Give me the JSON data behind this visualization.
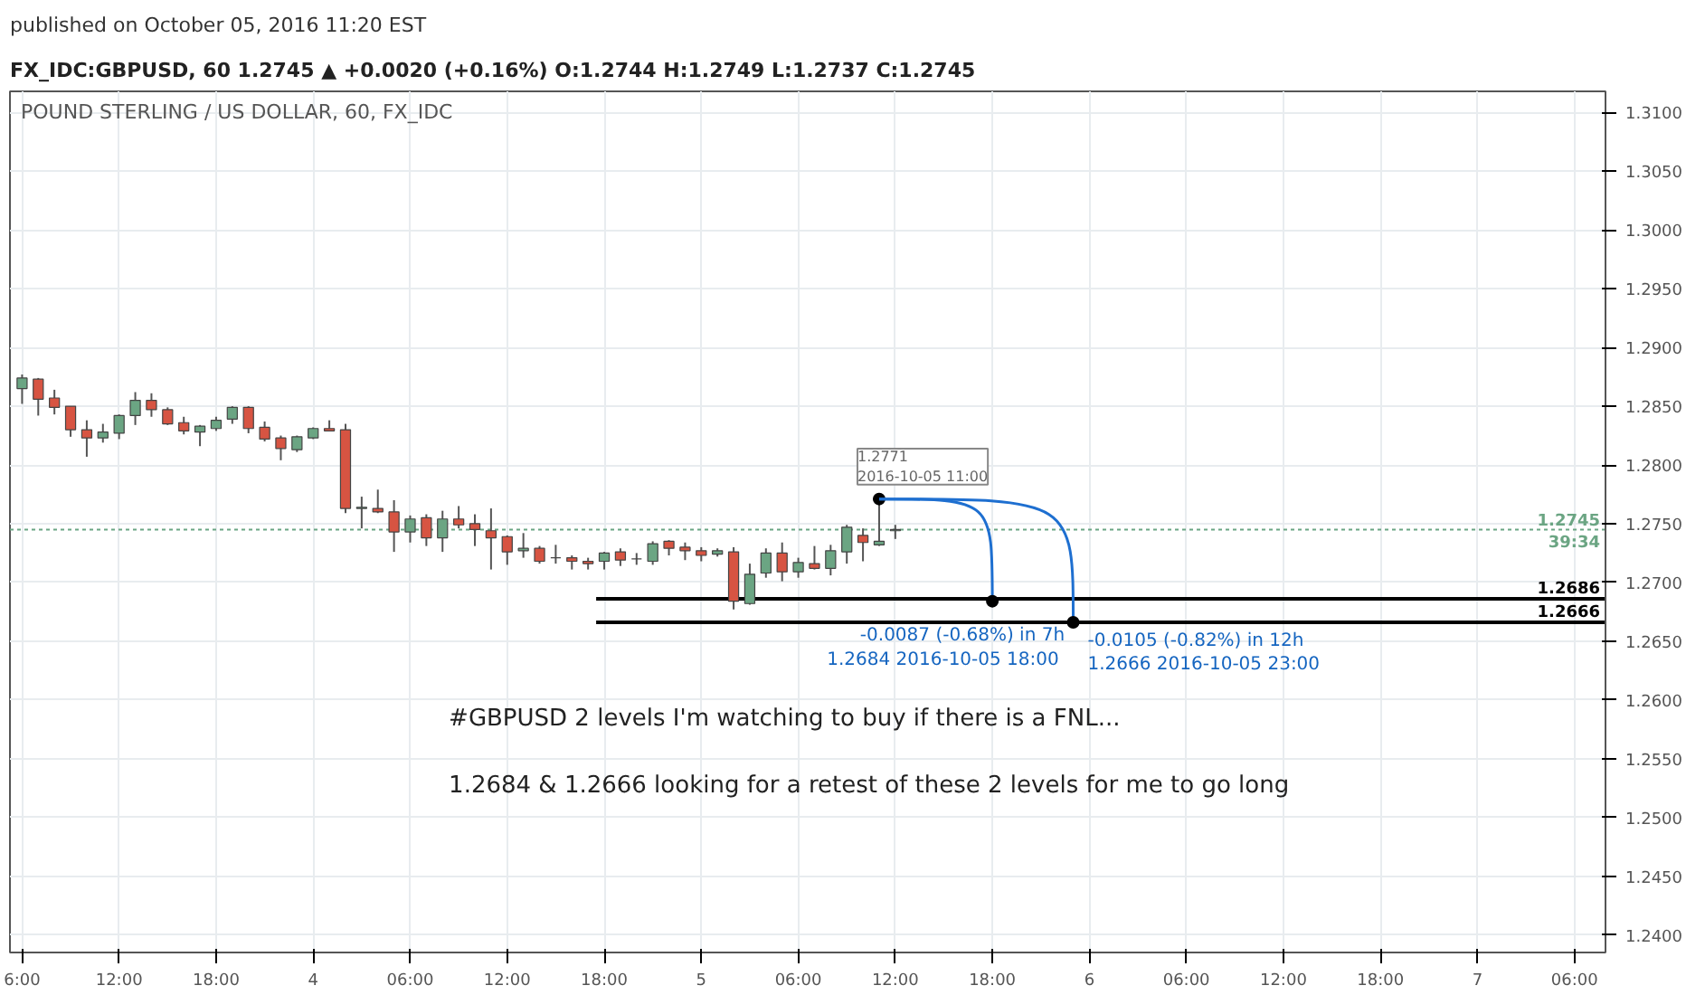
{
  "chart_data": {
    "type": "candlestick",
    "title": "POUND STERLING / US DOLLAR, 60, FX_IDC",
    "subtitle": "FX_IDC:GBPUSD, 60  1.2745 ▲ +0.0020 (+0.16%)  O:1.2744  H:1.2749  L:1.2737  C:1.2745",
    "x": [
      "2016-10-03T06:00",
      "2016-10-03T07:00",
      "2016-10-03T08:00",
      "2016-10-03T09:00",
      "2016-10-03T10:00",
      "2016-10-03T11:00",
      "2016-10-03T12:00",
      "2016-10-03T13:00",
      "2016-10-03T14:00",
      "2016-10-03T15:00",
      "2016-10-03T16:00",
      "2016-10-03T17:00",
      "2016-10-03T18:00",
      "2016-10-03T19:00",
      "2016-10-03T20:00",
      "2016-10-03T21:00",
      "2016-10-03T22:00",
      "2016-10-03T23:00",
      "2016-10-04T00:00",
      "2016-10-04T01:00",
      "2016-10-04T02:00",
      "2016-10-04T03:00",
      "2016-10-04T04:00",
      "2016-10-04T05:00",
      "2016-10-04T06:00",
      "2016-10-04T07:00",
      "2016-10-04T08:00",
      "2016-10-04T09:00",
      "2016-10-04T10:00",
      "2016-10-04T11:00",
      "2016-10-04T12:00",
      "2016-10-04T13:00",
      "2016-10-04T14:00",
      "2016-10-04T15:00",
      "2016-10-04T16:00",
      "2016-10-04T17:00",
      "2016-10-04T18:00",
      "2016-10-04T19:00",
      "2016-10-04T20:00",
      "2016-10-04T21:00",
      "2016-10-04T22:00",
      "2016-10-04T23:00",
      "2016-10-05T00:00",
      "2016-10-05T01:00",
      "2016-10-05T02:00",
      "2016-10-05T03:00",
      "2016-10-05T04:00",
      "2016-10-05T05:00",
      "2016-10-05T06:00",
      "2016-10-05T07:00",
      "2016-10-05T08:00",
      "2016-10-05T09:00",
      "2016-10-05T10:00",
      "2016-10-05T11:00",
      "2016-10-05T12:00"
    ],
    "ohlc": [
      [
        1.2865,
        1.2877,
        1.2852,
        1.2874
      ],
      [
        1.2873,
        1.2874,
        1.2842,
        1.2856
      ],
      [
        1.2857,
        1.2864,
        1.2843,
        1.2849
      ],
      [
        1.285,
        1.285,
        1.2824,
        1.283
      ],
      [
        1.283,
        1.2838,
        1.2807,
        1.2823
      ],
      [
        1.2823,
        1.2835,
        1.2819,
        1.2828
      ],
      [
        1.2827,
        1.2843,
        1.2822,
        1.2842
      ],
      [
        1.2842,
        1.2862,
        1.2834,
        1.2855
      ],
      [
        1.2855,
        1.2861,
        1.2841,
        1.2847
      ],
      [
        1.2847,
        1.2849,
        1.2834,
        1.2835
      ],
      [
        1.2836,
        1.2841,
        1.2826,
        1.2829
      ],
      [
        1.2828,
        1.2834,
        1.2816,
        1.2833
      ],
      [
        1.2831,
        1.2841,
        1.2829,
        1.2838
      ],
      [
        1.2839,
        1.285,
        1.2835,
        1.2849
      ],
      [
        1.2849,
        1.285,
        1.2827,
        1.2831
      ],
      [
        1.2832,
        1.2837,
        1.282,
        1.2822
      ],
      [
        1.2823,
        1.2825,
        1.2804,
        1.2814
      ],
      [
        1.2813,
        1.2825,
        1.2811,
        1.2824
      ],
      [
        1.2823,
        1.2832,
        1.2822,
        1.2831
      ],
      [
        1.2831,
        1.2838,
        1.2829,
        1.2829
      ],
      [
        1.283,
        1.2835,
        1.2759,
        1.2763
      ],
      [
        1.2763,
        1.2773,
        1.2746,
        1.2764
      ],
      [
        1.2763,
        1.2779,
        1.2759,
        1.276
      ],
      [
        1.276,
        1.277,
        1.2726,
        1.2743
      ],
      [
        1.2743,
        1.2757,
        1.2734,
        1.2754
      ],
      [
        1.2755,
        1.2758,
        1.2731,
        1.2738
      ],
      [
        1.2738,
        1.2761,
        1.2726,
        1.2754
      ],
      [
        1.2754,
        1.2765,
        1.2746,
        1.2749
      ],
      [
        1.275,
        1.2758,
        1.2731,
        1.2745
      ],
      [
        1.2744,
        1.2763,
        1.2711,
        1.2738
      ],
      [
        1.2739,
        1.274,
        1.2715,
        1.2726
      ],
      [
        1.2727,
        1.2742,
        1.2721,
        1.2729
      ],
      [
        1.2729,
        1.2731,
        1.2716,
        1.2718
      ],
      [
        1.2721,
        1.2732,
        1.2716,
        1.2721
      ],
      [
        1.2721,
        1.2723,
        1.2711,
        1.2718
      ],
      [
        1.2718,
        1.2721,
        1.2711,
        1.2716
      ],
      [
        1.2718,
        1.2726,
        1.2711,
        1.2725
      ],
      [
        1.2726,
        1.2729,
        1.2714,
        1.2719
      ],
      [
        1.272,
        1.2725,
        1.2715,
        1.272
      ],
      [
        1.2718,
        1.2735,
        1.2715,
        1.2733
      ],
      [
        1.2735,
        1.2736,
        1.2723,
        1.2729
      ],
      [
        1.273,
        1.2734,
        1.2719,
        1.2727
      ],
      [
        1.2727,
        1.273,
        1.2718,
        1.2723
      ],
      [
        1.2724,
        1.2729,
        1.2722,
        1.2727
      ],
      [
        1.2726,
        1.273,
        1.2677,
        1.2684
      ],
      [
        1.2682,
        1.2716,
        1.2681,
        1.2707
      ],
      [
        1.2708,
        1.2729,
        1.2704,
        1.2725
      ],
      [
        1.2725,
        1.2734,
        1.2701,
        1.2709
      ],
      [
        1.2709,
        1.2721,
        1.2704,
        1.2717
      ],
      [
        1.2716,
        1.2731,
        1.2711,
        1.2712
      ],
      [
        1.2712,
        1.2732,
        1.2706,
        1.2727
      ],
      [
        1.2726,
        1.2749,
        1.2716,
        1.2747
      ],
      [
        1.274,
        1.2746,
        1.2718,
        1.2734
      ],
      [
        1.2732,
        1.2771,
        1.2731,
        1.2735
      ],
      [
        1.2744,
        1.2749,
        1.2737,
        1.2745
      ]
    ],
    "series": [
      {
        "type": "line",
        "color": "#000000",
        "x": [
          "2016-10-04T17:30",
          "2016-10-07T07:55"
        ],
        "values": [
          1.2686,
          1.2686
        ],
        "value_labels": [
          null,
          "1.2686"
        ]
      },
      {
        "type": "line",
        "color": "#000000",
        "x": [
          "2016-10-04T17:30",
          "2016-10-07T07:55"
        ],
        "values": [
          1.2666,
          1.2666
        ],
        "value_labels": [
          null,
          "1.2666"
        ]
      }
    ],
    "ref_lines": [
      {
        "axis": "y",
        "value": 1.2745,
        "label": "1.2745",
        "color": "#6ba583",
        "line_style": "dotted"
      }
    ],
    "annotations": [
      "published on October 05, 2016 11:20 EST",
      "#GBPUSD 2 levels I'm watching to buy if there is a FNL...",
      "1.2684 & 1.2666   looking for a retest of these 2 levels for me to go long",
      {
        "text": "1.2771\n2016-10-05 11:00",
        "x": "2016-10-05T11:00",
        "y": 1.2771
      },
      {
        "text": "-0.0087 (-0.68%) in 7h\n1.2684  2016-10-05 18:00",
        "x": "2016-10-05T18:00",
        "y": 1.2684
      },
      {
        "text": "-0.0105 (-0.82%) in 12h\n1.2666  2016-10-05 23:00",
        "x": "2016-10-05T23:00",
        "y": 1.2666
      },
      {
        "text": "39:34",
        "y": 1.2745
      }
    ],
    "xlim": [
      "2016-10-03T05:15",
      "2016-10-07T07:55"
    ],
    "ylim": [
      1.2385,
      1.3118
    ],
    "xticks": [
      {
        "value": "2016-10-03T06:00",
        "label": "6:00"
      },
      {
        "value": "2016-10-03T12:00",
        "label": "12:00"
      },
      {
        "value": "2016-10-03T18:00",
        "label": "18:00"
      },
      {
        "value": "2016-10-04T00:00",
        "label": "4"
      },
      {
        "value": "2016-10-04T06:00",
        "label": "06:00"
      },
      {
        "value": "2016-10-04T12:00",
        "label": "12:00"
      },
      {
        "value": "2016-10-04T18:00",
        "label": "18:00"
      },
      {
        "value": "2016-10-05T00:00",
        "label": "5"
      },
      {
        "value": "2016-10-05T06:00",
        "label": "06:00"
      },
      {
        "value": "2016-10-05T12:00",
        "label": "12:00"
      },
      {
        "value": "2016-10-05T18:00",
        "label": "18:00"
      },
      {
        "value": "2016-10-06T00:00",
        "label": "6"
      },
      {
        "value": "2016-10-06T06:00",
        "label": "06:00"
      },
      {
        "value": "2016-10-06T12:00",
        "label": "12:00"
      },
      {
        "value": "2016-10-06T18:00",
        "label": "18:00"
      },
      {
        "value": "2016-10-07T00:00",
        "label": "7"
      },
      {
        "value": "2016-10-07T06:00",
        "label": "06:00"
      }
    ],
    "yticks": [
      {
        "value": 1.24,
        "label": "1.2400"
      },
      {
        "value": 1.245,
        "label": "1.2450"
      },
      {
        "value": 1.25,
        "label": "1.2500"
      },
      {
        "value": 1.255,
        "label": "1.2550"
      },
      {
        "value": 1.26,
        "label": "1.2600"
      },
      {
        "value": 1.265,
        "label": "1.2650"
      },
      {
        "value": 1.27,
        "label": "1.2700"
      },
      {
        "value": 1.275,
        "label": "1.2750"
      },
      {
        "value": 1.28,
        "label": "1.2800"
      },
      {
        "value": 1.285,
        "label": "1.2850"
      },
      {
        "value": 1.29,
        "label": "1.2900"
      },
      {
        "value": 1.295,
        "label": "1.2950"
      },
      {
        "value": 1.3,
        "label": "1.3000"
      },
      {
        "value": 1.305,
        "label": "1.3050"
      },
      {
        "value": 1.31,
        "label": "1.3100"
      }
    ],
    "grid": true
  }
}
